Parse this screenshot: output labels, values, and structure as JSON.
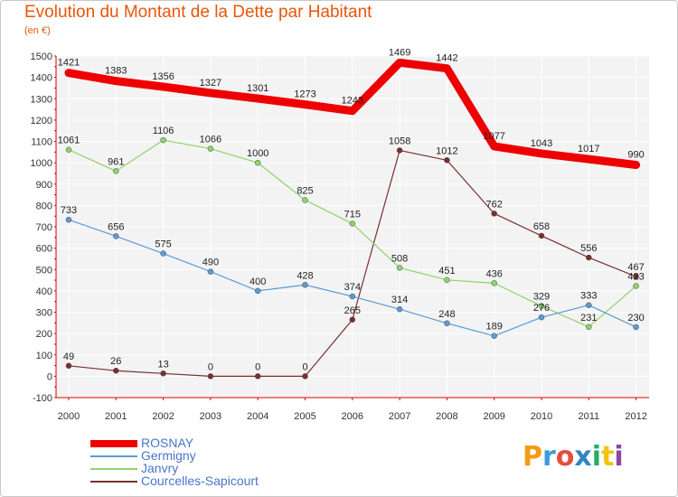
{
  "header": {
    "title": "Evolution du Montant de la Dette par Habitant",
    "unit": "(en €)"
  },
  "logo": {
    "text": "Proxiti"
  },
  "colors": {
    "title": "#e8560c",
    "legend_text": "#4a74c9"
  },
  "chart_data": {
    "type": "line",
    "title": "Evolution du Montant de la Dette par Habitant",
    "subtitle": "(en €)",
    "xlabel": "",
    "ylabel": "",
    "x": [
      "2000",
      "2001",
      "2002",
      "2003",
      "2004",
      "2005",
      "2006",
      "2007",
      "2008",
      "2009",
      "2010",
      "2011",
      "2012"
    ],
    "ylim": [
      -100,
      1500
    ],
    "yticks": [
      "-100",
      "0",
      "100",
      "200",
      "300",
      "400",
      "500",
      "600",
      "700",
      "800",
      "900",
      "1000",
      "1100",
      "1200",
      "1300",
      "1400",
      "1500"
    ],
    "grid": true,
    "legend_position": "bottom-left",
    "series": [
      {
        "name": "ROSNAY",
        "color": "#ee0000",
        "values": [
          1421,
          1383,
          1356,
          1327,
          1301,
          1273,
          1243,
          1469,
          1442,
          1077,
          1043,
          1017,
          990
        ],
        "labels": [
          "1421",
          "1383",
          "1356",
          "1327",
          "1301",
          "1273",
          "1243",
          "1469",
          "1442",
          "1077",
          "1043",
          "1017",
          "990"
        ]
      },
      {
        "name": "Germigny",
        "color": "#5b9bd5",
        "values": [
          733,
          656,
          575,
          490,
          400,
          428,
          374,
          314,
          248,
          189,
          276,
          333,
          230
        ],
        "labels": [
          "733",
          "656",
          "575",
          "490",
          "400",
          "428",
          "374",
          "314",
          "248",
          "189",
          "276",
          "333",
          "230"
        ]
      },
      {
        "name": "Janvry",
        "color": "#8fd36b",
        "values": [
          1061,
          961,
          1106,
          1066,
          1000,
          825,
          715,
          508,
          451,
          436,
          329,
          231,
          423
        ],
        "labels": [
          "1061",
          "961",
          "1106",
          "1066",
          "1000",
          "825",
          "715",
          "508",
          "451",
          "436",
          "329",
          "231",
          "423"
        ]
      },
      {
        "name": "Courcelles-Sapicourt",
        "color": "#7a2f2f",
        "values": [
          49,
          26,
          13,
          0,
          0,
          0,
          265,
          1058,
          1012,
          762,
          658,
          556,
          467
        ],
        "labels": [
          "49",
          "26",
          "13",
          "0",
          "0",
          "0",
          "265",
          "1058",
          "1012",
          "762",
          "658",
          "556",
          "467"
        ]
      }
    ]
  }
}
